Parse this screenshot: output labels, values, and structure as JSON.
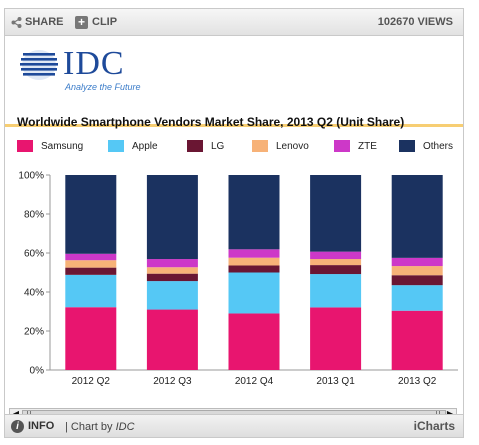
{
  "toolbar": {
    "share_label": "SHARE",
    "clip_label": "CLIP",
    "views_label": "102670 VIEWS"
  },
  "logo": {
    "text": "IDC",
    "tagline": "Analyze the Future",
    "color": "#1e4a9a"
  },
  "footer": {
    "info_label": "INFO",
    "chart_by_prefix": "| Chart by",
    "chart_by_brand": "IDC",
    "provider": "iCharts"
  },
  "chart_data": {
    "type": "bar",
    "stacked": true,
    "title": "Worldwide Smartphone Vendors Market Share, 2013 Q2 (Unit Share)",
    "legend_position": "top",
    "categories": [
      "2012 Q2",
      "2012 Q3",
      "2012 Q4",
      "2013 Q1",
      "2013 Q2"
    ],
    "ylim": [
      0,
      100
    ],
    "yticks": [
      "0%",
      "20%",
      "40%",
      "60%",
      "80%",
      "100%"
    ],
    "grid": false,
    "series": [
      {
        "name": "Samsung",
        "color": "#e8156f",
        "values": [
          32.2,
          31.0,
          29.0,
          32.1,
          30.4
        ]
      },
      {
        "name": "Apple",
        "color": "#55c8f5",
        "values": [
          16.6,
          14.6,
          21.0,
          17.1,
          13.1
        ]
      },
      {
        "name": "LG",
        "color": "#6a1633",
        "values": [
          3.7,
          3.8,
          3.6,
          4.6,
          5.1
        ]
      },
      {
        "name": "Lenovo",
        "color": "#f7b278",
        "values": [
          3.8,
          3.3,
          4.0,
          3.1,
          4.7
        ]
      },
      {
        "name": "ZTE",
        "color": "#cd38c8",
        "values": [
          3.3,
          4.2,
          4.3,
          3.8,
          4.2
        ]
      },
      {
        "name": "Others",
        "color": "#1b3260",
        "values": [
          40.4,
          43.1,
          38.1,
          39.3,
          42.5
        ]
      }
    ]
  }
}
